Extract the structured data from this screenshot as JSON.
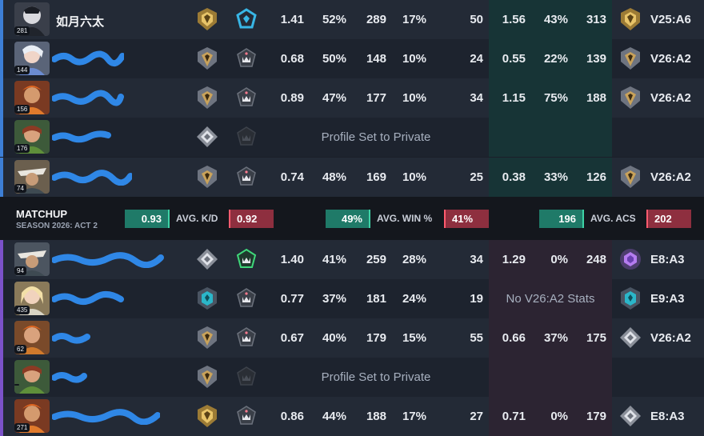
{
  "team_a": [
    {
      "name": "如月六太",
      "level": "281",
      "kd": "1.41",
      "hs": "52%",
      "acs": "289",
      "fb": "17%",
      "matches": "50",
      "prev_kd": "1.56",
      "prev_win": "43%",
      "prev_acs": "313",
      "prev_season": "V25:A6",
      "rank_icon": "gold-rank-icon",
      "ct_icon": "blue-crosshair-icon",
      "prev_rank_icon": "gold-rank-icon"
    },
    {
      "name": "",
      "level": "144",
      "kd": "0.68",
      "hs": "50%",
      "acs": "148",
      "fb": "10%",
      "matches": "24",
      "prev_kd": "0.55",
      "prev_win": "22%",
      "prev_acs": "139",
      "prev_season": "V26:A2",
      "rank_icon": "silver-gold-rank-icon",
      "ct_icon": "pink-crown-icon",
      "prev_rank_icon": "silver-gold-rank-icon"
    },
    {
      "name": "",
      "level": "156",
      "kd": "0.89",
      "hs": "47%",
      "acs": "177",
      "fb": "10%",
      "matches": "34",
      "prev_kd": "1.15",
      "prev_win": "75%",
      "prev_acs": "188",
      "prev_season": "V26:A2",
      "rank_icon": "silver-gold-rank-icon",
      "ct_icon": "pink-crown-icon",
      "prev_rank_icon": "silver-gold-rank-icon"
    },
    {
      "name": "",
      "level": "176",
      "private_text": "Profile Set to Private",
      "rank_icon": "silver-diamond-rank-icon",
      "ct_icon": "dark-crown-icon"
    },
    {
      "name": "",
      "level": "74",
      "kd": "0.74",
      "hs": "48%",
      "acs": "169",
      "fb": "10%",
      "matches": "25",
      "prev_kd": "0.38",
      "prev_win": "33%",
      "prev_acs": "126",
      "prev_season": "V26:A2",
      "rank_icon": "silver-gold-rank-icon",
      "ct_icon": "pink-crown-icon",
      "prev_rank_icon": "silver-gold-rank-icon"
    }
  ],
  "matchup": {
    "title": "MATCHUP",
    "season": "SEASON 2026: ACT 2",
    "kd_a": "0.93",
    "kd_label": "AVG. K/D",
    "kd_b": "0.92",
    "win_a": "49%",
    "win_label": "AVG. WIN %",
    "win_b": "41%",
    "acs_a": "196",
    "acs_label": "AVG. ACS",
    "acs_b": "202"
  },
  "team_b": [
    {
      "name": "",
      "level": "94",
      "kd": "1.40",
      "hs": "41%",
      "acs": "259",
      "fb": "28%",
      "matches": "34",
      "prev_kd": "1.29",
      "prev_win": "0%",
      "prev_acs": "248",
      "prev_season": "E8:A3",
      "rank_icon": "silver-diamond-rank-icon",
      "ct_icon": "green-crown-icon",
      "prev_rank_icon": "purple-rank-icon"
    },
    {
      "name": "",
      "level": "435",
      "kd": "0.77",
      "hs": "37%",
      "acs": "181",
      "fb": "24%",
      "matches": "19",
      "no_stats": "No V26:A2 Stats",
      "prev_season": "E9:A3",
      "rank_icon": "teal-rank-icon",
      "ct_icon": "pink-crown-icon",
      "prev_rank_icon": "teal-rank-icon"
    },
    {
      "name": "",
      "level": "62",
      "kd": "0.67",
      "hs": "40%",
      "acs": "179",
      "fb": "15%",
      "matches": "55",
      "prev_kd": "0.66",
      "prev_win": "37%",
      "prev_acs": "175",
      "prev_season": "V26:A2",
      "rank_icon": "silver-gold-rank-icon",
      "ct_icon": "pink-crown-icon",
      "prev_rank_icon": "silver-diamond-rank-icon"
    },
    {
      "name": "",
      "level": "",
      "private_text": "Profile Set to Private",
      "rank_icon": "silver-gold-rank-icon",
      "ct_icon": "dark-crown-icon"
    },
    {
      "name": "",
      "level": "271",
      "kd": "0.86",
      "hs": "44%",
      "acs": "188",
      "fb": "17%",
      "matches": "27",
      "prev_kd": "0.71",
      "prev_win": "0%",
      "prev_acs": "179",
      "prev_season": "E8:A3",
      "rank_icon": "gold-rank-icon",
      "ct_icon": "pink-crown-icon",
      "prev_rank_icon": "silver-diamond-rank-icon"
    }
  ],
  "colors": {
    "team_a_edge": "#3d7fd6",
    "team_b_edge": "#7b52c9",
    "positive": "#1f7a68",
    "negative": "#8e2f3f"
  }
}
